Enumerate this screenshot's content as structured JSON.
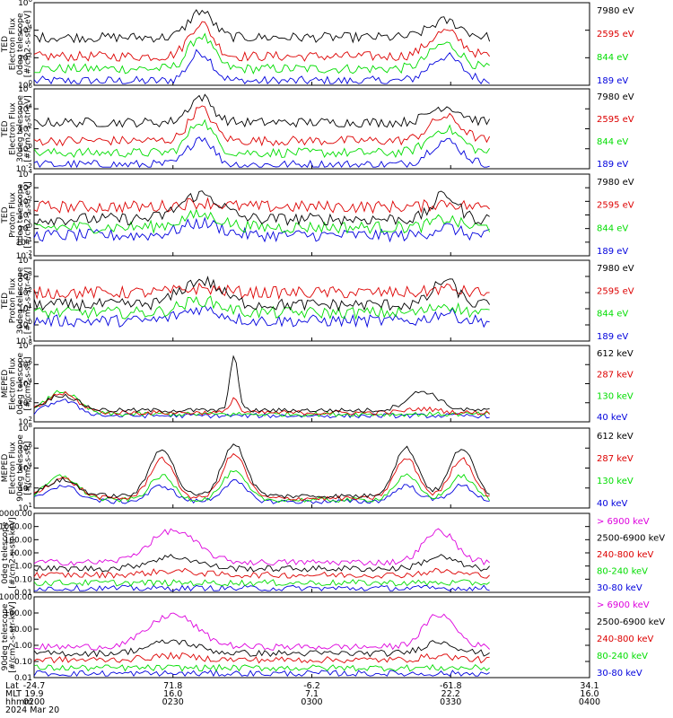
{
  "colors": {
    "blue": "#0000dd",
    "red": "#dd0000",
    "green": "#00dd00",
    "black": "#000000",
    "magenta": "#dd00dd"
  },
  "footer": {
    "rows": [
      {
        "label": "Lat",
        "values": [
          "-24.7",
          "71.8",
          "-6.2",
          "-61.8",
          "34.1"
        ]
      },
      {
        "label": "MLT",
        "values": [
          "19.9",
          "16.0",
          "7.1",
          "22.2",
          "16.0"
        ]
      },
      {
        "label": "hhmm",
        "values": [
          "0200",
          "0230",
          "0300",
          "0330",
          "0400"
        ]
      }
    ],
    "date": "2024 Mar 20"
  },
  "chart_data": [
    {
      "type": "line",
      "ylabel": [
        "TED",
        "Electron Flux",
        "0deg telescope",
        "[#/cm2-s-str-eV]"
      ],
      "yscale": "log",
      "ytick_labels": [
        "10^0",
        "10^2",
        "10^4",
        "10^6"
      ],
      "series": [
        {
          "name": "7980 eV",
          "color": "black"
        },
        {
          "name": "2595 eV",
          "color": "red"
        },
        {
          "name": "844 eV",
          "color": "green"
        },
        {
          "name": "189 eV",
          "color": "blue"
        }
      ]
    },
    {
      "type": "line",
      "ylabel": [
        "TED",
        "Electron Flux",
        "30deg telescope",
        "[#/cm2-s-str-eV]"
      ],
      "yscale": "log",
      "ytick_labels": [
        "10^-2",
        "10^0",
        "10^2",
        "10^4",
        "10^6"
      ],
      "series": [
        {
          "name": "7980 eV",
          "color": "black"
        },
        {
          "name": "2595 eV",
          "color": "red"
        },
        {
          "name": "844 eV",
          "color": "green"
        },
        {
          "name": "189 eV",
          "color": "blue"
        }
      ]
    },
    {
      "type": "line",
      "ylabel": [
        "TED",
        "Proton Flux",
        "0deg telescope",
        "[#/cm2-s-str-eV]"
      ],
      "yscale": "log",
      "ytick_labels": [
        "10^-2",
        "10^-1",
        "10^0",
        "10^1",
        "10^2",
        "10^3",
        "10^4"
      ],
      "series": [
        {
          "name": "7980 eV",
          "color": "black"
        },
        {
          "name": "2595 eV",
          "color": "red"
        },
        {
          "name": "844 eV",
          "color": "green"
        },
        {
          "name": "189 eV",
          "color": "blue"
        }
      ]
    },
    {
      "type": "line",
      "ylabel": [
        "TED",
        "Proton Flux",
        "30deg telescope",
        "[#/cm2-s-str-eV]"
      ],
      "yscale": "log",
      "ytick_labels": [
        "10^-1",
        "10^0",
        "10^1",
        "10^2",
        "10^3",
        "10^4"
      ],
      "series": [
        {
          "name": "7980 eV",
          "color": "black"
        },
        {
          "name": "2595 eV",
          "color": "red"
        },
        {
          "name": "844 eV",
          "color": "green"
        },
        {
          "name": "189 eV",
          "color": "blue"
        }
      ]
    },
    {
      "type": "line",
      "ylabel": [
        "MEPED",
        "Electron Flux",
        "0deg telescope",
        "[#/cm2-s-str]"
      ],
      "yscale": "log",
      "ytick_labels": [
        "10^2",
        "10^2",
        "10^4",
        "10^6",
        "10^8"
      ],
      "series": [
        {
          "name": "612 keV",
          "color": "black"
        },
        {
          "name": "287 keV",
          "color": "red"
        },
        {
          "name": "130 keV",
          "color": "green"
        },
        {
          "name": "40 keV",
          "color": "blue"
        }
      ]
    },
    {
      "type": "line",
      "ylabel": [
        "MEPED",
        "Electron Flux",
        "90deg telescope",
        "[#/cm2-s-str]"
      ],
      "yscale": "log",
      "ytick_labels": [
        "10^1",
        "10^2",
        "10^4",
        "10^6",
        "10^8"
      ],
      "series": [
        {
          "name": "612 keV",
          "color": "black"
        },
        {
          "name": "287 keV",
          "color": "red"
        },
        {
          "name": "130 keV",
          "color": "green"
        },
        {
          "name": "40 keV",
          "color": "blue"
        }
      ]
    },
    {
      "type": "line",
      "ylabel": [
        "0deg telescope",
        "[#/cm2-s-str-keV]"
      ],
      "yscale": "log",
      "ytick_labels": [
        "0.01",
        "0.10",
        "1.00",
        "10.00",
        "100.00",
        "1000.00",
        "10000.00"
      ],
      "series": [
        {
          "name": "> 6900 keV",
          "color": "magenta"
        },
        {
          "name": "2500-6900 keV",
          "color": "black"
        },
        {
          "name": "240-800 keV",
          "color": "red"
        },
        {
          "name": "80-240 keV",
          "color": "green"
        },
        {
          "name": "30-80 keV",
          "color": "blue"
        }
      ]
    },
    {
      "type": "line",
      "ylabel": [
        "90deg telescope",
        "[#/cm2-s-str-keV]"
      ],
      "yscale": "log",
      "ytick_labels": [
        "0.01",
        "0.10",
        "1.00",
        "10.00",
        "100.00",
        "1000.00"
      ],
      "series": [
        {
          "name": "> 6900 keV",
          "color": "magenta"
        },
        {
          "name": "2500-6900 keV",
          "color": "black"
        },
        {
          "name": "240-800 keV",
          "color": "red"
        },
        {
          "name": "80-240 keV",
          "color": "green"
        },
        {
          "name": "30-80 keV",
          "color": "blue"
        }
      ]
    }
  ]
}
